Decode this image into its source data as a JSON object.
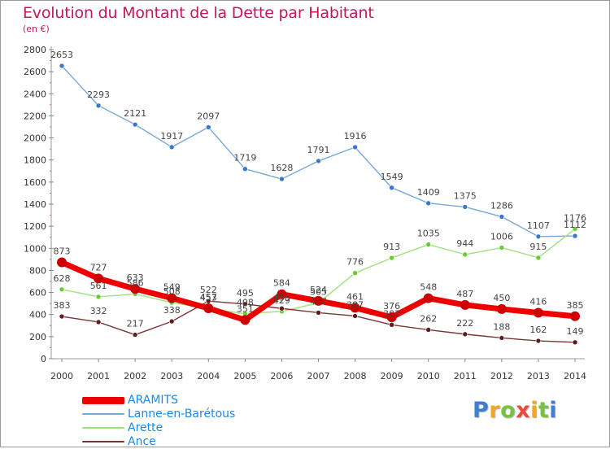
{
  "chart_data": {
    "type": "line",
    "title": "Evolution du Montant de la Dette par Habitant",
    "unit_label": "(en €)",
    "xlabel": "",
    "ylabel": "",
    "categories": [
      "2000",
      "2001",
      "2002",
      "2003",
      "2004",
      "2005",
      "2006",
      "2007",
      "2008",
      "2009",
      "2010",
      "2011",
      "2012",
      "2013",
      "2014"
    ],
    "ylim": [
      0,
      2800
    ],
    "yticks": [
      0,
      200,
      400,
      600,
      800,
      1000,
      1200,
      1400,
      1600,
      1800,
      2000,
      2200,
      2400,
      2600,
      2800
    ],
    "grid": false,
    "legend_position": "bottom-left",
    "series": [
      {
        "name": "ARAMITS",
        "color": "#ee0000",
        "marker": "#cc0000",
        "values": [
          873,
          727,
          633,
          549,
          457,
          351,
          584,
          524,
          461,
          376,
          548,
          487,
          450,
          416,
          385
        ],
        "labels": [
          "873",
          "727",
          "633",
          "549",
          "457",
          "351",
          "584",
          "524",
          "461",
          "376",
          "548",
          "487",
          "450",
          "416",
          "385"
        ]
      },
      {
        "name": "Lanne-en-Barétous",
        "color": "#78a8d8",
        "marker": "#3a78c8",
        "values": [
          2653,
          2293,
          2121,
          1917,
          2097,
          1719,
          1628,
          1791,
          1916,
          1549,
          1409,
          1375,
          1286,
          1107,
          1112
        ],
        "labels": [
          "2653",
          "2293",
          "2121",
          "1917",
          "2097",
          "1719",
          "1628",
          "1791",
          "1916",
          "1549",
          "1409",
          "1375",
          "1286",
          "1107",
          "1112"
        ]
      },
      {
        "name": "Arette",
        "color": "#9ee27e",
        "marker": "#66cc33",
        "values": [
          628,
          561,
          586,
          508,
          453,
          408,
          429,
          505,
          776,
          913,
          1035,
          944,
          1006,
          915,
          1176
        ],
        "labels": [
          "628",
          "561",
          "586",
          "508",
          "453",
          "408",
          "429",
          "505",
          "776",
          "913",
          "1035",
          "944",
          "1006",
          "915",
          "1176"
        ]
      },
      {
        "name": "Ance",
        "color": "#7a3535",
        "marker": "#5a1e1e",
        "values": [
          383,
          332,
          217,
          338,
          522,
          495,
          455,
          417,
          387,
          307,
          262,
          222,
          188,
          162,
          149
        ],
        "labels": [
          "383",
          "332",
          "217",
          "338",
          "522",
          "495",
          "455",
          "417",
          "387",
          "307",
          "262",
          "222",
          "188",
          "162",
          "149"
        ]
      }
    ]
  },
  "brand": {
    "letters": [
      "P",
      "r",
      "o",
      "x",
      "i",
      "t",
      "i"
    ],
    "colors": [
      "#3f7fd0",
      "#f5a623",
      "#79c142",
      "#e94b3c",
      "#f5a623",
      "#79c142",
      "#3f7fd0"
    ]
  }
}
